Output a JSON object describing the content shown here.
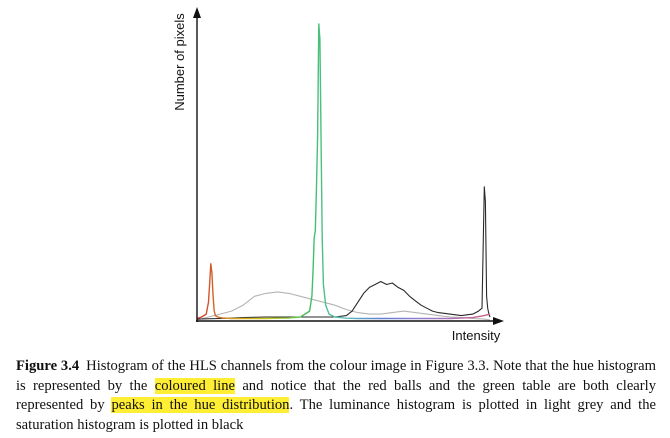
{
  "figure": {
    "ylabel": "Number of pixels",
    "xlabel": "Intensity"
  },
  "chart_data": {
    "type": "line",
    "title": "",
    "xlabel": "Intensity",
    "ylabel": "Number of pixels",
    "xlim": [
      0,
      255
    ],
    "ylim": [
      0,
      100
    ],
    "grid": false,
    "series": [
      {
        "color": "#3cbf5a",
        "hue_colors": [
          "#d03030",
          "#d6a020",
          "#c8c820",
          "#3cbf5a",
          "#60c0c0",
          "#6080d0",
          "#9080d0",
          "#b070b0",
          "#d06080"
        ],
        "x": [
          0,
          4,
          8,
          10,
          11,
          12,
          13,
          14,
          15,
          16,
          18,
          22,
          30,
          40,
          50,
          60,
          70,
          80,
          90,
          98,
          100,
          101,
          102,
          103,
          104,
          105,
          106,
          107,
          108,
          109,
          110,
          112,
          115,
          120,
          130,
          140,
          150,
          160,
          180,
          200,
          220,
          240,
          250,
          255
        ],
        "y": [
          0.5,
          1,
          2,
          6,
          12,
          19,
          16,
          8,
          3,
          1.5,
          1,
          0.7,
          0.5,
          0.5,
          0.5,
          0.5,
          0.6,
          0.7,
          1,
          3,
          8,
          17,
          28,
          30,
          45,
          62,
          100,
          95,
          60,
          28,
          12,
          5,
          2,
          1,
          0.6,
          0.5,
          0.5,
          0.5,
          0.5,
          0.5,
          0.5,
          0.8,
          1.5,
          2
        ]
      },
      {
        "color": "#b4b4b4",
        "x": [
          0,
          10,
          20,
          30,
          40,
          50,
          60,
          70,
          80,
          90,
          100,
          110,
          120,
          130,
          140,
          150,
          160,
          170,
          180,
          190,
          200,
          210,
          220,
          230,
          240,
          250,
          255
        ],
        "y": [
          0,
          1,
          2,
          3,
          5,
          8,
          9,
          9.5,
          9,
          8,
          7,
          6,
          5,
          3.5,
          2.5,
          2,
          2,
          2.5,
          3,
          2.5,
          2,
          1.5,
          1,
          0.8,
          0.5,
          0.3,
          0
        ]
      },
      {
        "color": "#2a2a2a",
        "x": [
          0,
          20,
          40,
          60,
          80,
          100,
          120,
          130,
          135,
          140,
          145,
          150,
          155,
          160,
          165,
          170,
          175,
          180,
          185,
          190,
          195,
          200,
          205,
          210,
          220,
          230,
          240,
          245,
          248,
          250,
          251,
          252,
          253,
          254,
          255
        ],
        "y": [
          0.3,
          0.5,
          0.8,
          1,
          1,
          1,
          1,
          1.5,
          3,
          6,
          9,
          11,
          12,
          13,
          12,
          12.5,
          11,
          10,
          8,
          6.5,
          5,
          4,
          3,
          2.5,
          2,
          1.5,
          2,
          3,
          4,
          45,
          40,
          8,
          4,
          2,
          1
        ]
      }
    ],
    "legend": false
  },
  "caption": {
    "label": "Figure 3.4",
    "text_1": "Histogram of the HLS channels from the colour image in Figure 3.3. Note that the hue histogram is represented by the ",
    "highlight_1": "coloured line",
    "text_2": " and notice that the red balls and the green table are both clearly represented by ",
    "highlight_2": "peaks in the hue distribution",
    "text_3": ". The luminance histogram is plotted in light grey and the saturation histogram is plotted in black"
  }
}
